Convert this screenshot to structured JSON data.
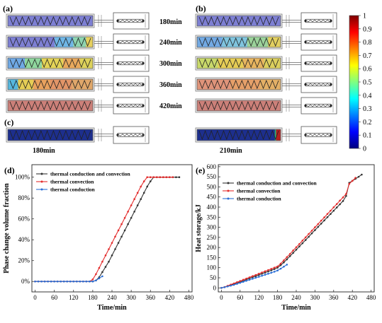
{
  "panels": {
    "a": "(a)",
    "b": "(b)",
    "c": "(c)",
    "d": "(d)",
    "e": "(e)"
  },
  "panel_a": {
    "rows": [
      {
        "label": "180min",
        "fill": [
          {
            "c": "#7d7fd3",
            "w": 1
          }
        ]
      },
      {
        "label": "240min",
        "fill": [
          {
            "c": "#7d7fd3",
            "w": 0.55
          },
          {
            "c": "#6fb6e6",
            "w": 0.22
          },
          {
            "c": "#8ed4b0",
            "w": 0.15
          },
          {
            "c": "#e6d05e",
            "w": 0.08
          }
        ]
      },
      {
        "label": "300min",
        "fill": [
          {
            "c": "#6fa9e6",
            "w": 0.2
          },
          {
            "c": "#8fd79e",
            "w": 0.2
          },
          {
            "c": "#e4d457",
            "w": 0.25
          },
          {
            "c": "#e9a95c",
            "w": 0.2
          },
          {
            "c": "#ddd25a",
            "w": 0.15
          }
        ]
      },
      {
        "label": "360min",
        "fill": [
          {
            "c": "#56b8de",
            "w": 0.12
          },
          {
            "c": "#e6ce55",
            "w": 0.18
          },
          {
            "c": "#e9a25e",
            "w": 0.2
          },
          {
            "c": "#e29568",
            "w": 0.25
          },
          {
            "c": "#e0a76a",
            "w": 0.25
          }
        ]
      },
      {
        "label": "420min",
        "fill": [
          {
            "c": "#cc8079",
            "w": 1
          }
        ]
      }
    ]
  },
  "panel_b": {
    "rows": [
      {
        "fill": [
          {
            "c": "#7d7fd3",
            "w": 1
          }
        ]
      },
      {
        "fill": [
          {
            "c": "#72a9e3",
            "w": 0.3
          },
          {
            "c": "#7fc4de",
            "w": 0.3
          },
          {
            "c": "#9bd29a",
            "w": 0.25
          },
          {
            "c": "#e2cf5f",
            "w": 0.15
          }
        ]
      },
      {
        "fill": [
          {
            "c": "#c9d96a",
            "w": 0.25
          },
          {
            "c": "#e6cd55",
            "w": 0.3
          },
          {
            "c": "#e8b55f",
            "w": 0.25
          },
          {
            "c": "#dccf5d",
            "w": 0.2
          }
        ]
      },
      {
        "fill": [
          {
            "c": "#e0947a",
            "w": 0.4
          },
          {
            "c": "#e6a069",
            "w": 0.35
          },
          {
            "c": "#e4b066",
            "w": 0.25
          }
        ]
      },
      {
        "fill": [
          {
            "c": "#cc8079",
            "w": 1
          }
        ]
      }
    ]
  },
  "panel_c": {
    "left_label": "180min",
    "right_label": "210min"
  },
  "colorbar": {
    "ticks": [
      "1",
      "0.9",
      "0.8",
      "0.7",
      "0.6",
      "0.5",
      "0.4",
      "0.3",
      "0.2",
      "0.1",
      "0"
    ],
    "stops": [
      "#00007f",
      "#0000ff",
      "#0080ff",
      "#00ffff",
      "#80ff80",
      "#ffff00",
      "#ff8000",
      "#ff0000",
      "#7f0000"
    ]
  },
  "chart_data": [
    {
      "type": "line",
      "xlabel": "Time/min",
      "ylabel": "Phase change volume fraction",
      "xlim": [
        -10,
        490
      ],
      "ylim": [
        -0.1,
        1.12
      ],
      "x_ticks": [
        0,
        60,
        120,
        180,
        240,
        300,
        360,
        420,
        480
      ],
      "y_ticks": [
        {
          "v": 0,
          "label": "0%"
        },
        {
          "v": 0.2,
          "label": "20%"
        },
        {
          "v": 0.4,
          "label": "40%"
        },
        {
          "v": 0.6,
          "label": "60%"
        },
        {
          "v": 0.8,
          "label": "80%"
        },
        {
          "v": 1,
          "label": "100%"
        }
      ],
      "legend_position": "top-left",
      "series": [
        {
          "name": "thermal conduction and convection",
          "color": "#333333",
          "marker": "dot",
          "x": [
            0,
            10,
            20,
            30,
            40,
            50,
            60,
            70,
            80,
            90,
            100,
            110,
            120,
            130,
            140,
            150,
            160,
            170,
            180,
            190,
            200,
            210,
            220,
            230,
            240,
            250,
            260,
            270,
            280,
            290,
            300,
            310,
            320,
            330,
            340,
            350,
            360,
            370,
            380,
            390,
            400,
            410,
            420,
            430,
            440,
            450
          ],
          "y": [
            0,
            0,
            0,
            0,
            0,
            0,
            0,
            0,
            0,
            0,
            0,
            0,
            0,
            0,
            0,
            0,
            0,
            0,
            0,
            0.01,
            0.04,
            0.09,
            0.14,
            0.19,
            0.25,
            0.31,
            0.37,
            0.43,
            0.49,
            0.55,
            0.61,
            0.67,
            0.73,
            0.79,
            0.85,
            0.91,
            0.96,
            1.0,
            1.0,
            1.0,
            1.0,
            1.0,
            1.0,
            1.0,
            1.0,
            1.0
          ]
        },
        {
          "name": "thermal convection",
          "color": "#e32d2d",
          "marker": "dot",
          "x": [
            0,
            10,
            20,
            30,
            40,
            50,
            60,
            70,
            80,
            90,
            100,
            110,
            120,
            130,
            140,
            150,
            160,
            170,
            180,
            190,
            200,
            210,
            220,
            230,
            240,
            250,
            260,
            270,
            280,
            290,
            300,
            310,
            320,
            330,
            340,
            350,
            360,
            370,
            380,
            390,
            400,
            410,
            420,
            430
          ],
          "y": [
            0,
            0,
            0,
            0,
            0,
            0,
            0,
            0,
            0,
            0,
            0,
            0,
            0,
            0,
            0,
            0,
            0,
            0,
            0.02,
            0.07,
            0.13,
            0.19,
            0.25,
            0.31,
            0.37,
            0.43,
            0.49,
            0.55,
            0.61,
            0.67,
            0.73,
            0.79,
            0.85,
            0.91,
            0.96,
            1.0,
            1.0,
            1.0,
            1.0,
            1.0,
            1.0,
            1.0,
            1.0,
            1.0
          ]
        },
        {
          "name": "thermal conduction",
          "color": "#2b6fd6",
          "marker": "dot",
          "x": [
            0,
            10,
            20,
            30,
            40,
            50,
            60,
            70,
            80,
            90,
            100,
            110,
            120,
            130,
            140,
            150,
            160,
            170,
            180,
            190,
            200,
            210
          ],
          "y": [
            0,
            0,
            0,
            0,
            0,
            0,
            0,
            0,
            0,
            0,
            0,
            0,
            0,
            0,
            0,
            0,
            0,
            0,
            0,
            0.01,
            0.03,
            0.05
          ]
        }
      ]
    },
    {
      "type": "line",
      "xlabel": "Time/min",
      "ylabel": "Heat storage/kJ",
      "xlim": [
        -10,
        490
      ],
      "ylim": [
        -20,
        610
      ],
      "x_ticks": [
        0,
        60,
        120,
        180,
        240,
        300,
        360,
        420,
        480
      ],
      "y_ticks": [
        {
          "v": 0,
          "label": "0"
        },
        {
          "v": 50,
          "label": "50"
        },
        {
          "v": 100,
          "label": "100"
        },
        {
          "v": 150,
          "label": "150"
        },
        {
          "v": 200,
          "label": "200"
        },
        {
          "v": 250,
          "label": "250"
        },
        {
          "v": 300,
          "label": "300"
        },
        {
          "v": 350,
          "label": "350"
        },
        {
          "v": 400,
          "label": "400"
        },
        {
          "v": 450,
          "label": "450"
        },
        {
          "v": 500,
          "label": "500"
        },
        {
          "v": 550,
          "label": "550"
        },
        {
          "v": 600,
          "label": "600"
        }
      ],
      "legend_position": "top-left",
      "series": [
        {
          "name": "thermal conduction and convection",
          "color": "#333333",
          "marker": "dot",
          "x": [
            0,
            10,
            20,
            30,
            40,
            50,
            60,
            70,
            80,
            90,
            100,
            110,
            120,
            130,
            140,
            150,
            160,
            170,
            180,
            190,
            200,
            210,
            220,
            230,
            240,
            250,
            260,
            270,
            280,
            290,
            300,
            310,
            320,
            330,
            340,
            350,
            360,
            370,
            380,
            390,
            400,
            410,
            420,
            430,
            440,
            450
          ],
          "y": [
            0,
            4,
            9,
            14,
            19,
            24,
            29,
            35,
            41,
            47,
            53,
            58,
            64,
            70,
            76,
            81,
            87,
            93,
            100,
            112,
            126,
            141,
            157,
            173,
            189,
            205,
            221,
            237,
            253,
            270,
            286,
            302,
            318,
            334,
            350,
            366,
            382,
            398,
            414,
            430,
            455,
            520,
            530,
            540,
            550,
            561
          ]
        },
        {
          "name": "thermal convection",
          "color": "#e32d2d",
          "marker": "dot",
          "x": [
            0,
            10,
            20,
            30,
            40,
            50,
            60,
            70,
            80,
            90,
            100,
            110,
            120,
            130,
            140,
            150,
            160,
            170,
            180,
            190,
            200,
            210,
            220,
            230,
            240,
            250,
            260,
            270,
            280,
            290,
            300,
            310,
            320,
            330,
            340,
            350,
            360,
            370,
            380,
            390,
            400,
            410,
            420,
            430
          ],
          "y": [
            0,
            4,
            10,
            16,
            22,
            28,
            34,
            40,
            46,
            52,
            58,
            64,
            70,
            76,
            82,
            88,
            94,
            100,
            106,
            120,
            136,
            152,
            168,
            185,
            201,
            217,
            234,
            250,
            267,
            283,
            300,
            316,
            333,
            349,
            366,
            382,
            399,
            415,
            432,
            448,
            465,
            515,
            530,
            545
          ]
        },
        {
          "name": "thermal conduction",
          "color": "#2b6fd6",
          "marker": "dot",
          "x": [
            0,
            10,
            20,
            30,
            40,
            50,
            60,
            70,
            80,
            90,
            100,
            110,
            120,
            130,
            140,
            150,
            160,
            170,
            180,
            190,
            200,
            210
          ],
          "y": [
            0,
            3,
            7,
            11,
            15,
            20,
            25,
            30,
            35,
            40,
            45,
            50,
            55,
            60,
            65,
            70,
            75,
            80,
            86,
            95,
            105,
            115
          ]
        }
      ]
    }
  ]
}
